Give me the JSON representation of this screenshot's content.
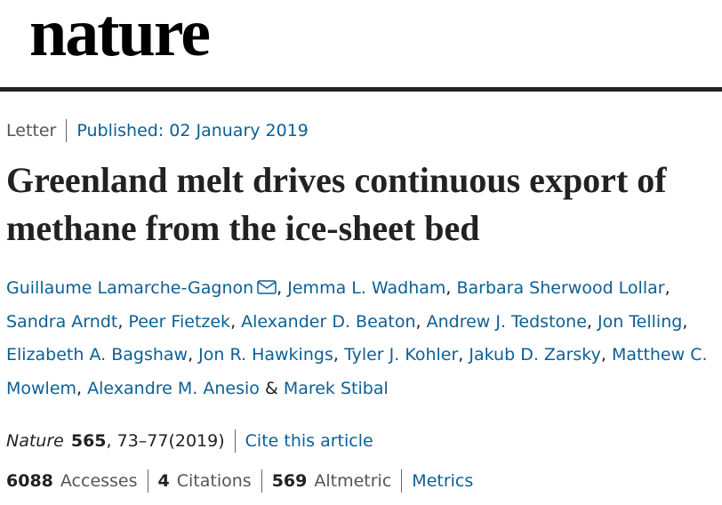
{
  "header": {
    "logo": "nature"
  },
  "article": {
    "type": "Letter",
    "published": "Published: 02 January 2019",
    "title": "Greenland melt drives continuous export of methane from the ice-sheet bed",
    "authors": [
      "Guillaume Lamarche-Gagnon",
      "Jemma L. Wadham",
      "Barbara Sherwood Lollar",
      "Sandra Arndt",
      "Peer Fietzek",
      "Alexander D. Beaton",
      "Andrew J. Tedstone",
      "Jon Telling",
      "Elizabeth A. Bagshaw",
      "Jon R. Hawkings",
      "Tyler J. Kohler",
      "Jakub D. Zarsky",
      "Matthew C. Mowlem",
      "Alexandre M. Anesio",
      "Marek Stibal"
    ],
    "delimiter": ",",
    "conjunction": "&",
    "citation": {
      "journal": "Nature",
      "volume": "565",
      "pages": ", 73–77(2019)",
      "cite_link": "Cite this article"
    },
    "metrics": {
      "accesses": {
        "value": "6088",
        "label": "Accesses"
      },
      "citations": {
        "value": "4",
        "label": "Citations"
      },
      "altmetric": {
        "value": "569",
        "label": "Altmetric"
      },
      "link": "Metrics"
    }
  }
}
